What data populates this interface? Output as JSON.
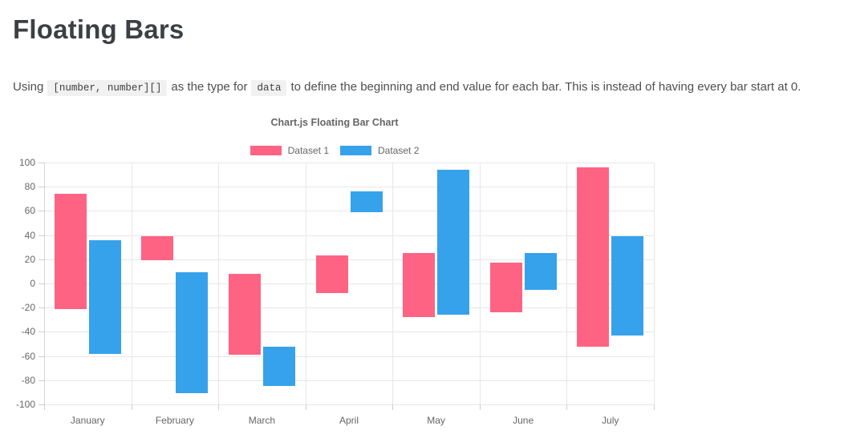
{
  "page": {
    "title": "Floating Bars",
    "description": {
      "part1": "Using",
      "code1": "[number, number][]",
      "part2": "as the type for",
      "code2": "data",
      "part3": "to define the beginning and end value for each bar. This is instead of having every bar start at 0."
    }
  },
  "chart_data": {
    "type": "bar",
    "variant": "floating",
    "title": "Chart.js Floating Bar Chart",
    "categories": [
      "January",
      "February",
      "March",
      "April",
      "May",
      "June",
      "July"
    ],
    "series": [
      {
        "name": "Dataset 1",
        "color": "#FF6384",
        "values": [
          [
            -21,
            74
          ],
          [
            19,
            39
          ],
          [
            -59,
            8
          ],
          [
            -8,
            23
          ],
          [
            -28,
            25
          ],
          [
            -24,
            17
          ],
          [
            -52,
            96
          ]
        ]
      },
      {
        "name": "Dataset 2",
        "color": "#36A2EB",
        "values": [
          [
            -58,
            36
          ],
          [
            -91,
            9
          ],
          [
            -85,
            -52
          ],
          [
            59,
            76
          ],
          [
            -26,
            94
          ],
          [
            -5,
            25
          ],
          [
            -43,
            39
          ]
        ]
      }
    ],
    "ylim": [
      -100,
      100
    ],
    "ytick_step": 20,
    "ytick_labels": [
      "100",
      "80",
      "60",
      "40",
      "20",
      "0",
      "-20",
      "-40",
      "-60",
      "-80",
      "-100"
    ],
    "grid": true,
    "legend_position": "top"
  }
}
